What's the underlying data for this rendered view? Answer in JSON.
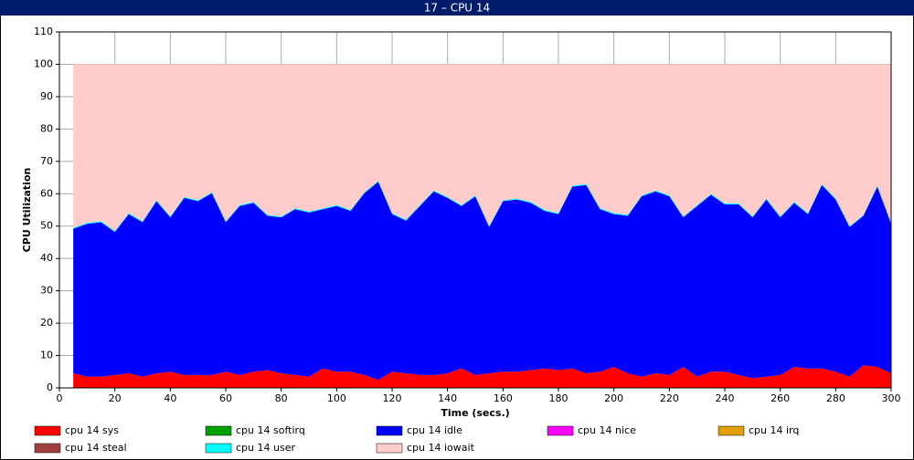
{
  "chart_data": {
    "type": "stacked_area",
    "title": "17 – CPU 14",
    "x_label": "Time (secs.)",
    "y_label": "CPU Utilization",
    "xlim": [
      0,
      300
    ],
    "ylim": [
      0,
      110
    ],
    "xticks": [
      0,
      20,
      40,
      60,
      80,
      100,
      120,
      140,
      160,
      180,
      200,
      220,
      240,
      260,
      280,
      300
    ],
    "yticks": [
      0,
      10,
      20,
      30,
      40,
      50,
      60,
      70,
      80,
      90,
      100,
      110
    ],
    "grid": true,
    "x": [
      5,
      10,
      15,
      20,
      25,
      30,
      35,
      40,
      45,
      50,
      55,
      60,
      65,
      70,
      75,
      80,
      85,
      90,
      95,
      100,
      105,
      110,
      115,
      120,
      125,
      130,
      135,
      140,
      145,
      150,
      155,
      160,
      165,
      170,
      175,
      180,
      185,
      190,
      195,
      200,
      205,
      210,
      215,
      220,
      225,
      230,
      235,
      240,
      245,
      250,
      255,
      260,
      265,
      270,
      275,
      280,
      285,
      290,
      295,
      300
    ],
    "series": [
      {
        "name": "cpu 14 sys",
        "color": "#ff0000",
        "values": [
          4.5,
          3.5,
          3.5,
          4,
          4.5,
          3.5,
          4.5,
          5,
          4,
          4,
          4,
          5,
          4,
          5,
          5.5,
          4.5,
          4,
          3.5,
          6,
          5,
          5,
          4,
          2.5,
          5,
          4.5,
          4,
          4,
          4.5,
          6,
          4,
          4.5,
          5,
          5,
          5.5,
          6,
          5.5,
          6,
          4.5,
          5,
          6.5,
          4.5,
          3.5,
          4.5,
          4,
          6.5,
          3.5,
          5,
          5,
          4,
          3,
          3.5,
          4,
          6.5,
          6,
          6,
          5,
          3.5,
          7,
          6.5,
          4.5
        ]
      },
      {
        "name": "cpu 14 softirq",
        "color": "#00a000",
        "values": [
          0,
          0,
          0,
          0,
          0,
          0,
          0,
          0,
          0,
          0,
          0,
          0,
          0,
          0,
          0,
          0,
          0,
          0,
          0,
          0,
          0,
          0,
          0,
          0,
          0,
          0,
          0,
          0,
          0,
          0,
          0,
          0,
          0,
          0,
          0,
          0,
          0,
          0,
          0,
          0,
          0,
          0,
          0,
          0,
          0,
          0,
          0,
          0,
          0,
          0,
          0,
          0,
          0,
          0,
          0,
          0,
          0,
          0,
          0,
          0
        ]
      },
      {
        "name": "cpu 14 idle",
        "color": "#0000ff",
        "values": [
          44.7,
          47.2,
          47.7,
          44.2,
          49.2,
          47.7,
          53.2,
          47.7,
          54.7,
          53.7,
          56.2,
          46.2,
          52.2,
          52.2,
          47.7,
          48.2,
          51.2,
          50.7,
          49.2,
          51.2,
          49.7,
          56.2,
          61.2,
          48.7,
          47.2,
          52.2,
          56.7,
          54.2,
          50.2,
          55.2,
          45.2,
          52.7,
          53.2,
          51.7,
          48.7,
          48.2,
          56.2,
          58.2,
          50.2,
          47.2,
          48.7,
          55.7,
          56.2,
          55.2,
          46.2,
          52.7,
          54.7,
          51.7,
          52.7,
          49.7,
          54.7,
          48.7,
          50.7,
          47.7,
          56.7,
          53.2,
          46.2,
          46.2,
          55.7,
          46.2
        ]
      },
      {
        "name": "cpu 14 nice",
        "color": "#ff00ff",
        "values": [
          0,
          0,
          0,
          0,
          0,
          0,
          0,
          0,
          0,
          0,
          0,
          0,
          0,
          0,
          0,
          0,
          0,
          0,
          0,
          0,
          0,
          0,
          0,
          0,
          0,
          0,
          0,
          0,
          0,
          0,
          0,
          0,
          0,
          0,
          0,
          0,
          0,
          0,
          0,
          0,
          0,
          0,
          0,
          0,
          0,
          0,
          0,
          0,
          0,
          0,
          0,
          0,
          0,
          0,
          0,
          0,
          0,
          0,
          0,
          0
        ]
      },
      {
        "name": "cpu 14 irq",
        "color": "#e0a000",
        "values": [
          0,
          0,
          0,
          0,
          0,
          0,
          0,
          0,
          0,
          0,
          0,
          0,
          0,
          0,
          0,
          0,
          0,
          0,
          0,
          0,
          0,
          0,
          0,
          0,
          0,
          0,
          0,
          0,
          0,
          0,
          0,
          0,
          0,
          0,
          0,
          0,
          0,
          0,
          0,
          0,
          0,
          0,
          0,
          0,
          0,
          0,
          0,
          0,
          0,
          0,
          0,
          0,
          0,
          0,
          0,
          0,
          0,
          0,
          0,
          0
        ]
      },
      {
        "name": "cpu 14 steal",
        "color": "#a04040",
        "values": [
          0,
          0,
          0,
          0,
          0,
          0,
          0,
          0,
          0,
          0,
          0,
          0,
          0,
          0,
          0,
          0,
          0,
          0,
          0,
          0,
          0,
          0,
          0,
          0,
          0,
          0,
          0,
          0,
          0,
          0,
          0,
          0,
          0,
          0,
          0,
          0,
          0,
          0,
          0,
          0,
          0,
          0,
          0,
          0,
          0,
          0,
          0,
          0,
          0,
          0,
          0,
          0,
          0,
          0,
          0,
          0,
          0,
          0,
          0,
          0
        ]
      },
      {
        "name": "cpu 14 user",
        "color": "#00ffff",
        "values": [
          0.3,
          0.3,
          0.3,
          0.3,
          0.3,
          0.3,
          0.3,
          0.3,
          0.3,
          0.3,
          0.3,
          0.3,
          0.3,
          0.3,
          0.3,
          0.3,
          0.3,
          0.3,
          0.3,
          0.3,
          0.3,
          0.3,
          0.3,
          0.3,
          0.3,
          0.3,
          0.3,
          0.3,
          0.3,
          0.3,
          0.3,
          0.3,
          0.3,
          0.3,
          0.3,
          0.3,
          0.3,
          0.3,
          0.3,
          0.3,
          0.3,
          0.3,
          0.3,
          0.3,
          0.3,
          0.3,
          0.3,
          0.3,
          0.3,
          0.3,
          0.3,
          0.3,
          0.3,
          0.3,
          0.3,
          0.3,
          0.3,
          0.3,
          0.3,
          0.3
        ]
      },
      {
        "name": "cpu 14 iowait",
        "color": "#ffcccc",
        "values": [
          50.5,
          49,
          48.5,
          51.5,
          46,
          48.5,
          42,
          47,
          41,
          42,
          39.5,
          48.5,
          43.5,
          42.5,
          46.5,
          47,
          44.5,
          45.5,
          44.5,
          43.5,
          45,
          39.5,
          36,
          46,
          48,
          43.5,
          39,
          41,
          43.5,
          40.5,
          50,
          42,
          41.5,
          42.5,
          45,
          46,
          37.5,
          37,
          44.5,
          46,
          46.5,
          40.5,
          39,
          40.5,
          47,
          43.5,
          40,
          43,
          43,
          47,
          41.5,
          47,
          42.5,
          46,
          37,
          41.5,
          50,
          46.5,
          37.5,
          49
        ]
      }
    ]
  }
}
